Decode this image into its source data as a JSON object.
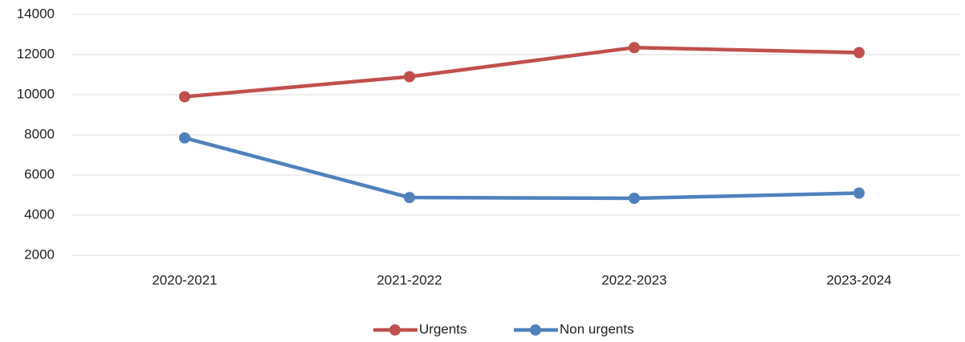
{
  "chart_data": {
    "type": "line",
    "categories": [
      "2020-2021",
      "2021-2022",
      "2022-2023",
      "2023-2024"
    ],
    "series": [
      {
        "name": "Urgents",
        "color": "#c0504d",
        "values": [
          9900,
          10900,
          12350,
          12100
        ]
      },
      {
        "name": "Non urgents",
        "color": "#4f81bd",
        "values": [
          7850,
          4880,
          4840,
          5100
        ]
      }
    ],
    "ylim": [
      2000,
      14000
    ],
    "yticks": [
      2000,
      4000,
      6000,
      8000,
      10000,
      12000,
      14000
    ],
    "grid": true,
    "legend": "bottom"
  }
}
